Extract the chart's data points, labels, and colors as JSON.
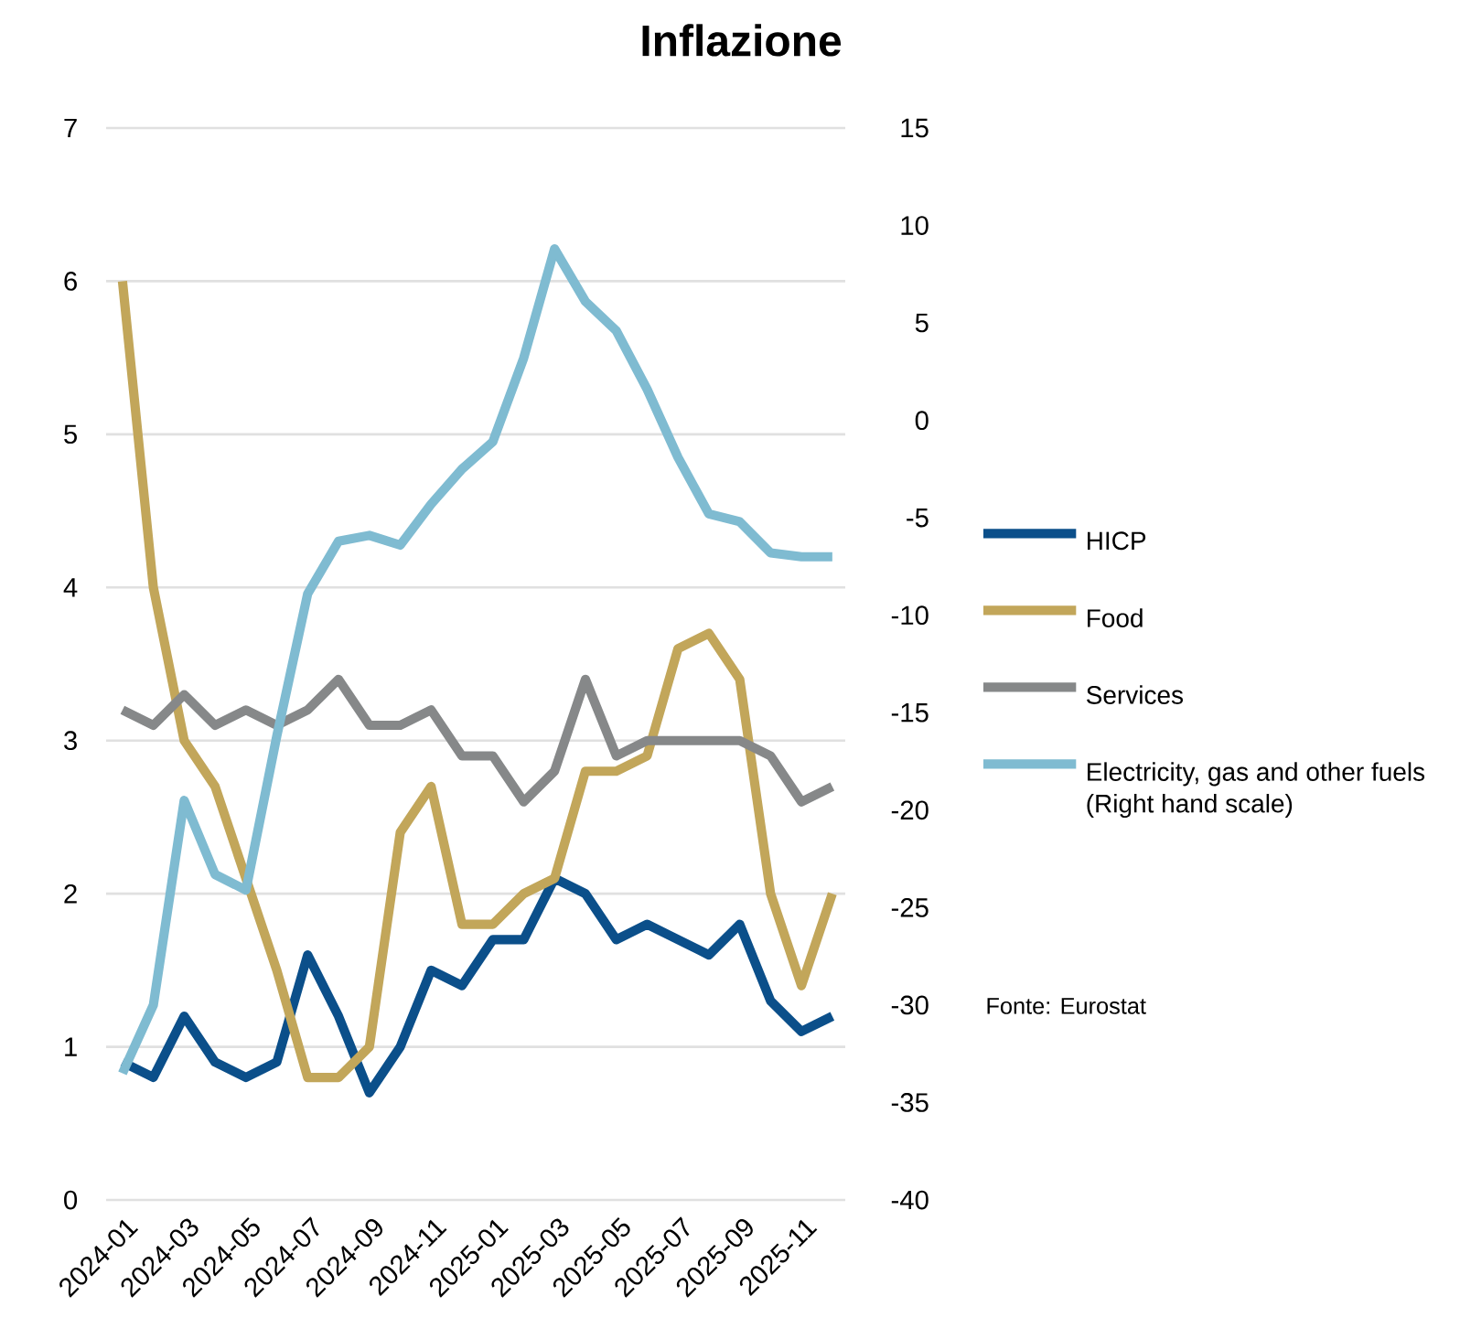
{
  "chart_data": {
    "type": "line",
    "title": "Inflazione",
    "categories": [
      "2024-01",
      null,
      "2024-03",
      null,
      "2024-05",
      null,
      "2024-07",
      null,
      "2024-09",
      null,
      "2024-11",
      null,
      "2025-01",
      null,
      "2025-03",
      null,
      "2025-05",
      null,
      "2025-07",
      null,
      "2025-09",
      null,
      "2025-11",
      null
    ],
    "series": [
      {
        "name": "HICP",
        "color": "#0b4f8a",
        "values": [
          0.9,
          0.8,
          1.2,
          0.9,
          0.8,
          0.9,
          1.6,
          1.2,
          0.7,
          1.0,
          1.5,
          1.4,
          1.7,
          1.7,
          2.1,
          2.0,
          1.7,
          1.8,
          1.7,
          1.6,
          1.8,
          1.3,
          1.1,
          1.2
        ]
      },
      {
        "name": "Food",
        "color": "#c2a65a",
        "values": [
          6.0,
          4.0,
          3.0,
          2.7,
          2.1,
          1.5,
          0.8,
          0.8,
          1.0,
          2.4,
          2.7,
          1.8,
          1.8,
          2.0,
          2.1,
          2.8,
          2.8,
          2.9,
          3.6,
          3.7,
          3.4,
          2.0,
          1.4,
          2.0
        ]
      },
      {
        "name": "Services",
        "color": "#868889",
        "values": [
          3.2,
          3.1,
          3.3,
          3.1,
          3.2,
          3.1,
          3.2,
          3.4,
          3.1,
          3.1,
          3.2,
          2.9,
          2.9,
          2.6,
          2.8,
          3.4,
          2.9,
          3.0,
          3.0,
          3.0,
          3.0,
          2.9,
          2.6,
          2.7
        ]
      },
      {
        "name": "Electricity, gas and other fuels (Right hand scale)",
        "color": "#7fbbd1",
        "axis": "y2",
        "values": [
          -33.5,
          -30.0,
          -19.5,
          -23.3,
          -24.1,
          -16.2,
          -8.9,
          -6.2,
          -5.9,
          -6.4,
          -4.3,
          -2.5,
          -1.1,
          3.2,
          8.8,
          6.1,
          4.6,
          1.6,
          -1.9,
          -4.8,
          -5.2,
          -6.8,
          -7.0,
          -7.0
        ]
      }
    ],
    "ylim": [
      0,
      7
    ],
    "yticks": [
      0,
      1,
      2,
      3,
      4,
      5,
      6,
      7
    ],
    "y2lim": [
      -40,
      15
    ],
    "y2ticks": [
      -40,
      -35,
      -30,
      -25,
      -20,
      -15,
      -10,
      -5,
      0,
      5,
      10,
      15
    ],
    "grid": "y",
    "legend": "right",
    "annotations": [
      "Fonte: Eurostat"
    ]
  }
}
